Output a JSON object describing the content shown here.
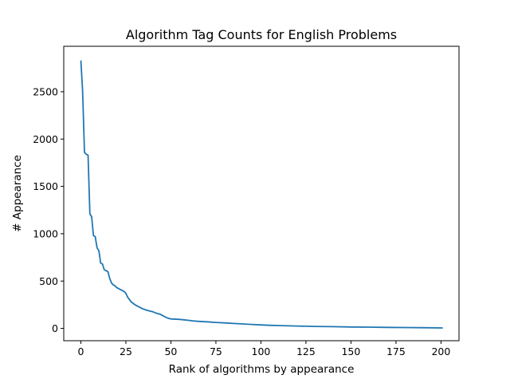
{
  "chart_data": {
    "type": "line",
    "title": "Algorithm Tag Counts for English Problems",
    "xlabel": "Rank of algorithms by appearance",
    "ylabel": "# Appearance",
    "xlim": [
      -9.5,
      210
    ],
    "ylim": [
      -130,
      2980
    ],
    "xticks": [
      0,
      25,
      50,
      75,
      100,
      125,
      150,
      175,
      200
    ],
    "yticks": [
      0,
      500,
      1000,
      1500,
      2000,
      2500
    ],
    "grid": false,
    "line_color": "#1f77b4",
    "series": [
      {
        "x": [
          0,
          1,
          2,
          3,
          4,
          5,
          6,
          7,
          8,
          9,
          10,
          11,
          12,
          13,
          14,
          15,
          16,
          17,
          18,
          19,
          20,
          22,
          24,
          25,
          26,
          28,
          30,
          32,
          34,
          36,
          38,
          40,
          42,
          44,
          46,
          48,
          50,
          55,
          60,
          62,
          65,
          70,
          75,
          80,
          85,
          90,
          95,
          100,
          105,
          110,
          120,
          130,
          140,
          150,
          160,
          170,
          180,
          190,
          201
        ],
        "y": [
          2830,
          2500,
          1860,
          1840,
          1830,
          1210,
          1180,
          980,
          970,
          850,
          820,
          690,
          680,
          620,
          610,
          600,
          530,
          480,
          460,
          450,
          430,
          410,
          390,
          370,
          330,
          280,
          250,
          230,
          210,
          195,
          185,
          175,
          160,
          150,
          130,
          110,
          100,
          95,
          85,
          80,
          75,
          70,
          63,
          58,
          52,
          47,
          42,
          37,
          33,
          30,
          25,
          21,
          18,
          15,
          13,
          11,
          9,
          7,
          5
        ]
      }
    ]
  }
}
